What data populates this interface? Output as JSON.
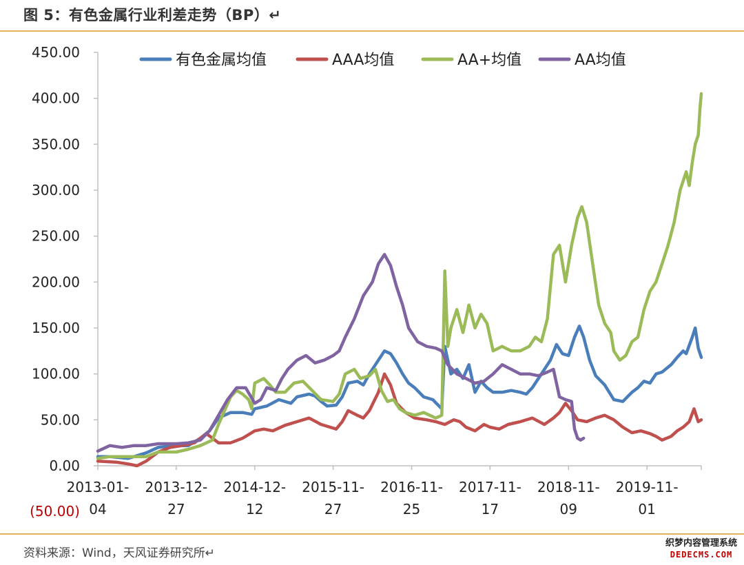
{
  "header": {
    "title": "图 5：有色金属行业利差走势（BP）↵"
  },
  "footer": {
    "source": "资料来源：Wind，天风证券研究所↵"
  },
  "watermark": {
    "line1": "织梦内容管理系统",
    "line2": "DEDECMS.COM"
  },
  "chart_data": {
    "type": "line",
    "title": "有色金属行业利差走势（BP）",
    "xlabel": "",
    "ylabel": "",
    "ylim": [
      0,
      450
    ],
    "grid": false,
    "legend_position": "top",
    "y_ticks": [
      "450.00",
      "400.00",
      "350.00",
      "300.00",
      "250.00",
      "200.00",
      "150.00",
      "100.00",
      "50.00",
      "0.00"
    ],
    "y_tick_values": [
      450,
      400,
      350,
      300,
      250,
      200,
      150,
      100,
      50,
      0
    ],
    "y_extra_label": "(50.00)",
    "y_extra_color": "#c00000",
    "x_ticks": [
      {
        "line1": "2013-01-",
        "line2": "04",
        "t": 0.0
      },
      {
        "line1": "2013-12-",
        "line2": "27",
        "t": 0.13
      },
      {
        "line1": "2014-12-",
        "line2": "12",
        "t": 0.26
      },
      {
        "line1": "2015-11-",
        "line2": "27",
        "t": 0.39
      },
      {
        "line1": "2016-11-",
        "line2": "25",
        "t": 0.52
      },
      {
        "line1": "2017-11-",
        "line2": "17",
        "t": 0.65
      },
      {
        "line1": "2018-11-",
        "line2": "09",
        "t": 0.78
      },
      {
        "line1": "2019-11-",
        "line2": "01",
        "t": 0.91
      }
    ],
    "series": [
      {
        "name": "有色金属均值",
        "color": "#4a7ebb",
        "points": [
          [
            0.0,
            10
          ],
          [
            0.02,
            10
          ],
          [
            0.05,
            8
          ],
          [
            0.08,
            14
          ],
          [
            0.1,
            20
          ],
          [
            0.13,
            22
          ],
          [
            0.15,
            22
          ],
          [
            0.17,
            30
          ],
          [
            0.185,
            38
          ],
          [
            0.2,
            52
          ],
          [
            0.22,
            58
          ],
          [
            0.24,
            58
          ],
          [
            0.255,
            56
          ],
          [
            0.26,
            62
          ],
          [
            0.28,
            65
          ],
          [
            0.3,
            72
          ],
          [
            0.32,
            68
          ],
          [
            0.33,
            75
          ],
          [
            0.35,
            78
          ],
          [
            0.36,
            76
          ],
          [
            0.37,
            70
          ],
          [
            0.38,
            65
          ],
          [
            0.395,
            66
          ],
          [
            0.405,
            75
          ],
          [
            0.415,
            90
          ],
          [
            0.43,
            92
          ],
          [
            0.44,
            88
          ],
          [
            0.45,
            100
          ],
          [
            0.465,
            115
          ],
          [
            0.475,
            125
          ],
          [
            0.485,
            122
          ],
          [
            0.495,
            112
          ],
          [
            0.505,
            100
          ],
          [
            0.515,
            90
          ],
          [
            0.525,
            85
          ],
          [
            0.54,
            75
          ],
          [
            0.555,
            72
          ],
          [
            0.57,
            62
          ],
          [
            0.575,
            130
          ],
          [
            0.585,
            100
          ],
          [
            0.595,
            105
          ],
          [
            0.605,
            95
          ],
          [
            0.615,
            110
          ],
          [
            0.625,
            80
          ],
          [
            0.635,
            92
          ],
          [
            0.645,
            85
          ],
          [
            0.655,
            80
          ],
          [
            0.67,
            80
          ],
          [
            0.685,
            82
          ],
          [
            0.7,
            80
          ],
          [
            0.71,
            78
          ],
          [
            0.72,
            85
          ],
          [
            0.735,
            100
          ],
          [
            0.75,
            115
          ],
          [
            0.76,
            132
          ],
          [
            0.77,
            122
          ],
          [
            0.78,
            120
          ],
          [
            0.79,
            140
          ],
          [
            0.798,
            152
          ],
          [
            0.805,
            140
          ],
          [
            0.815,
            115
          ],
          [
            0.825,
            98
          ],
          [
            0.84,
            88
          ],
          [
            0.855,
            72
          ],
          [
            0.87,
            70
          ],
          [
            0.885,
            80
          ],
          [
            0.895,
            85
          ],
          [
            0.905,
            92
          ],
          [
            0.915,
            90
          ],
          [
            0.925,
            100
          ],
          [
            0.935,
            102
          ],
          [
            0.95,
            110
          ],
          [
            0.96,
            118
          ],
          [
            0.97,
            125
          ],
          [
            0.975,
            122
          ],
          [
            0.985,
            140
          ],
          [
            0.99,
            150
          ],
          [
            0.995,
            128
          ],
          [
            1.0,
            118
          ]
        ]
      },
      {
        "name": "AAA均值",
        "color": "#c0504d",
        "points": [
          [
            0.0,
            5
          ],
          [
            0.03,
            4
          ],
          [
            0.05,
            2
          ],
          [
            0.065,
            0
          ],
          [
            0.08,
            5
          ],
          [
            0.1,
            15
          ],
          [
            0.12,
            20
          ],
          [
            0.14,
            22
          ],
          [
            0.16,
            25
          ],
          [
            0.18,
            35
          ],
          [
            0.19,
            30
          ],
          [
            0.2,
            25
          ],
          [
            0.22,
            25
          ],
          [
            0.24,
            30
          ],
          [
            0.26,
            38
          ],
          [
            0.275,
            40
          ],
          [
            0.29,
            38
          ],
          [
            0.31,
            44
          ],
          [
            0.33,
            48
          ],
          [
            0.35,
            52
          ],
          [
            0.37,
            45
          ],
          [
            0.385,
            42
          ],
          [
            0.395,
            40
          ],
          [
            0.405,
            48
          ],
          [
            0.415,
            60
          ],
          [
            0.43,
            55
          ],
          [
            0.44,
            52
          ],
          [
            0.45,
            60
          ],
          [
            0.465,
            80
          ],
          [
            0.475,
            100
          ],
          [
            0.485,
            88
          ],
          [
            0.495,
            68
          ],
          [
            0.51,
            58
          ],
          [
            0.525,
            52
          ],
          [
            0.545,
            50
          ],
          [
            0.56,
            48
          ],
          [
            0.575,
            45
          ],
          [
            0.59,
            50
          ],
          [
            0.6,
            48
          ],
          [
            0.61,
            42
          ],
          [
            0.625,
            38
          ],
          [
            0.64,
            45
          ],
          [
            0.65,
            42
          ],
          [
            0.665,
            40
          ],
          [
            0.68,
            45
          ],
          [
            0.7,
            48
          ],
          [
            0.72,
            52
          ],
          [
            0.74,
            45
          ],
          [
            0.755,
            52
          ],
          [
            0.765,
            58
          ],
          [
            0.775,
            68
          ],
          [
            0.785,
            60
          ],
          [
            0.795,
            50
          ],
          [
            0.81,
            48
          ],
          [
            0.825,
            52
          ],
          [
            0.84,
            55
          ],
          [
            0.855,
            50
          ],
          [
            0.87,
            42
          ],
          [
            0.885,
            36
          ],
          [
            0.9,
            38
          ],
          [
            0.915,
            35
          ],
          [
            0.925,
            32
          ],
          [
            0.935,
            28
          ],
          [
            0.95,
            32
          ],
          [
            0.96,
            38
          ],
          [
            0.97,
            42
          ],
          [
            0.98,
            48
          ],
          [
            0.988,
            62
          ],
          [
            0.995,
            48
          ],
          [
            1.0,
            50
          ]
        ]
      },
      {
        "name": "AA+均值",
        "color": "#9bbb59",
        "points": [
          [
            0.0,
            8
          ],
          [
            0.02,
            10
          ],
          [
            0.04,
            10
          ],
          [
            0.06,
            10
          ],
          [
            0.08,
            10
          ],
          [
            0.1,
            15
          ],
          [
            0.13,
            15
          ],
          [
            0.15,
            18
          ],
          [
            0.17,
            22
          ],
          [
            0.18,
            25
          ],
          [
            0.19,
            28
          ],
          [
            0.2,
            45
          ],
          [
            0.21,
            60
          ],
          [
            0.22,
            75
          ],
          [
            0.23,
            82
          ],
          [
            0.24,
            78
          ],
          [
            0.25,
            72
          ],
          [
            0.255,
            62
          ],
          [
            0.26,
            90
          ],
          [
            0.275,
            95
          ],
          [
            0.285,
            88
          ],
          [
            0.295,
            80
          ],
          [
            0.31,
            80
          ],
          [
            0.325,
            90
          ],
          [
            0.34,
            92
          ],
          [
            0.355,
            82
          ],
          [
            0.37,
            72
          ],
          [
            0.39,
            70
          ],
          [
            0.4,
            78
          ],
          [
            0.41,
            100
          ],
          [
            0.425,
            105
          ],
          [
            0.435,
            95
          ],
          [
            0.45,
            98
          ],
          [
            0.46,
            105
          ],
          [
            0.47,
            82
          ],
          [
            0.48,
            70
          ],
          [
            0.49,
            72
          ],
          [
            0.5,
            62
          ],
          [
            0.51,
            58
          ],
          [
            0.525,
            55
          ],
          [
            0.54,
            58
          ],
          [
            0.56,
            52
          ],
          [
            0.57,
            55
          ],
          [
            0.575,
            212
          ],
          [
            0.58,
            130
          ],
          [
            0.585,
            150
          ],
          [
            0.595,
            170
          ],
          [
            0.605,
            145
          ],
          [
            0.615,
            175
          ],
          [
            0.625,
            150
          ],
          [
            0.635,
            165
          ],
          [
            0.645,
            155
          ],
          [
            0.655,
            125
          ],
          [
            0.67,
            130
          ],
          [
            0.685,
            125
          ],
          [
            0.7,
            125
          ],
          [
            0.715,
            130
          ],
          [
            0.725,
            140
          ],
          [
            0.735,
            135
          ],
          [
            0.745,
            160
          ],
          [
            0.755,
            230
          ],
          [
            0.765,
            240
          ],
          [
            0.775,
            200
          ],
          [
            0.785,
            240
          ],
          [
            0.795,
            270
          ],
          [
            0.802,
            282
          ],
          [
            0.81,
            265
          ],
          [
            0.82,
            220
          ],
          [
            0.83,
            175
          ],
          [
            0.84,
            155
          ],
          [
            0.85,
            145
          ],
          [
            0.855,
            125
          ],
          [
            0.865,
            115
          ],
          [
            0.875,
            120
          ],
          [
            0.885,
            135
          ],
          [
            0.895,
            140
          ],
          [
            0.905,
            170
          ],
          [
            0.915,
            190
          ],
          [
            0.925,
            200
          ],
          [
            0.935,
            220
          ],
          [
            0.945,
            240
          ],
          [
            0.955,
            265
          ],
          [
            0.965,
            300
          ],
          [
            0.975,
            320
          ],
          [
            0.98,
            305
          ],
          [
            0.985,
            330
          ],
          [
            0.99,
            350
          ],
          [
            0.995,
            360
          ],
          [
            0.998,
            390
          ],
          [
            1.0,
            405
          ]
        ]
      },
      {
        "name": "AA均值",
        "color": "#8064a2",
        "points": [
          [
            0.0,
            16
          ],
          [
            0.02,
            22
          ],
          [
            0.04,
            20
          ],
          [
            0.06,
            22
          ],
          [
            0.08,
            22
          ],
          [
            0.1,
            24
          ],
          [
            0.13,
            24
          ],
          [
            0.15,
            25
          ],
          [
            0.17,
            28
          ],
          [
            0.185,
            38
          ],
          [
            0.2,
            55
          ],
          [
            0.215,
            72
          ],
          [
            0.23,
            85
          ],
          [
            0.245,
            85
          ],
          [
            0.26,
            68
          ],
          [
            0.27,
            72
          ],
          [
            0.28,
            85
          ],
          [
            0.295,
            82
          ],
          [
            0.305,
            95
          ],
          [
            0.315,
            105
          ],
          [
            0.33,
            115
          ],
          [
            0.345,
            120
          ],
          [
            0.36,
            112
          ],
          [
            0.375,
            115
          ],
          [
            0.39,
            120
          ],
          [
            0.4,
            125
          ],
          [
            0.41,
            140
          ],
          [
            0.425,
            160
          ],
          [
            0.44,
            185
          ],
          [
            0.455,
            200
          ],
          [
            0.465,
            220
          ],
          [
            0.475,
            230
          ],
          [
            0.485,
            218
          ],
          [
            0.495,
            195
          ],
          [
            0.505,
            175
          ],
          [
            0.515,
            150
          ],
          [
            0.53,
            135
          ],
          [
            0.545,
            130
          ],
          [
            0.56,
            128
          ],
          [
            0.57,
            125
          ],
          [
            0.58,
            110
          ],
          [
            0.595,
            100
          ],
          [
            0.61,
            95
          ],
          [
            0.625,
            90
          ],
          [
            0.64,
            92
          ],
          [
            0.655,
            100
          ],
          [
            0.67,
            110
          ],
          [
            0.685,
            105
          ],
          [
            0.7,
            100
          ],
          [
            0.715,
            100
          ],
          [
            0.73,
            98
          ],
          [
            0.745,
            102
          ],
          [
            0.755,
            105
          ],
          [
            0.765,
            75
          ],
          [
            0.775,
            72
          ],
          [
            0.785,
            70
          ],
          [
            0.79,
            40
          ],
          [
            0.795,
            30
          ],
          [
            0.8,
            28
          ],
          [
            0.805,
            30
          ]
        ]
      }
    ]
  }
}
